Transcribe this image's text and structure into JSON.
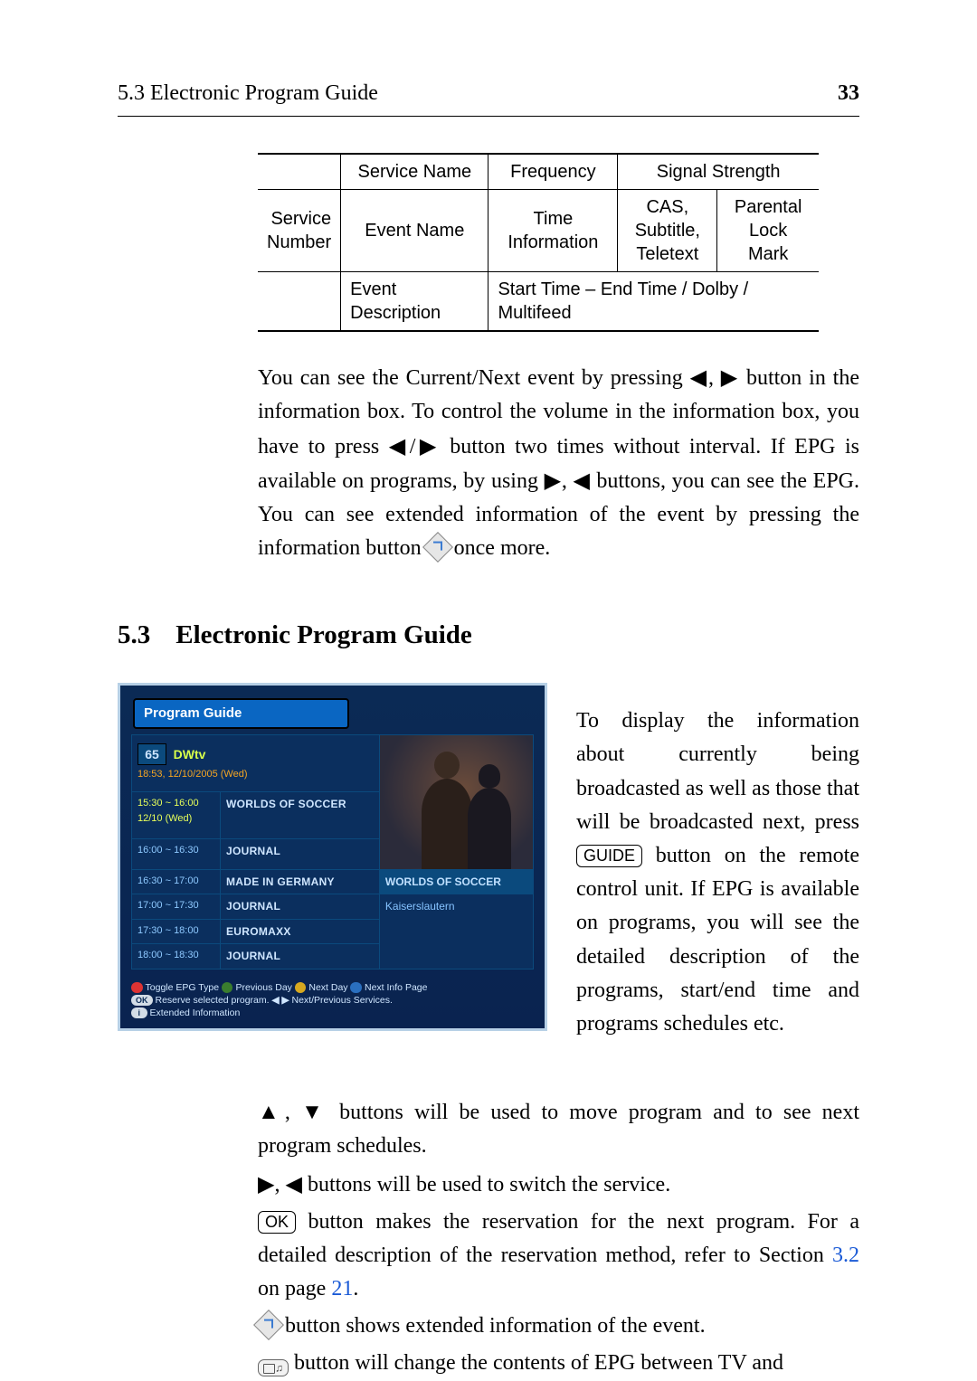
{
  "header": {
    "left": "5.3 Electronic Program Guide",
    "page": "33"
  },
  "infotable": {
    "r1c2": "Service Name",
    "r1c3": "Frequency",
    "r1c4": "Signal Strength",
    "r2c1a": "Service",
    "r2c1b": "Number",
    "r2c2": "Event Name",
    "r2c3a": "Time",
    "r2c3b": "Information",
    "r2c4a": "CAS,",
    "r2c4b": "Subtitle,",
    "r2c4c": "Teletext",
    "r2c5a": "Parental",
    "r2c5b": "Lock",
    "r2c5c": "Mark",
    "r3c2": "Event Description",
    "r3c3": "Start Time – End Time / Dolby / Multifeed"
  },
  "para1_a": "You can see the Current/Next event by pressing ",
  "para1_b": " button in the information box. To control the volume in the information box, you have to press ",
  "para1_c": " button two times without interval. If EPG is available on programs, by using ",
  "para1_d": " buttons, you can see the EPG. You can see extended information of the event by pressing the information button ",
  "para1_e": " once more.",
  "section": {
    "num": "5.3",
    "title": "Electronic Program Guide"
  },
  "epg": {
    "titlebar": "Program Guide",
    "channel_num": "65",
    "channel_name": "DWtv",
    "datetime": "18:53, 12/10/2005 (Wed)",
    "rows": [
      {
        "time": "15:30 ~ 16:00",
        "time2": "12/10 (Wed)",
        "prog": "WORLDS OF SOCCER",
        "active": true
      },
      {
        "time": "16:00 ~ 16:30",
        "prog": "JOURNAL"
      },
      {
        "time": "16:30 ~ 17:00",
        "prog": "MADE IN GERMANY"
      },
      {
        "time": "17:00 ~ 17:30",
        "prog": "JOURNAL"
      },
      {
        "time": "17:30 ~ 18:00",
        "prog": "EUROMAXX"
      },
      {
        "time": "18:00 ~ 18:30",
        "prog": "JOURNAL"
      }
    ],
    "preview_title": "WORLDS OF SOCCER",
    "preview_desc": "Kaiserslautern",
    "legend": {
      "l1a": "Toggle EPG Type",
      "l1b": "Previous Day",
      "l1c": "Next Day",
      "l1d": "Next Info Page",
      "l2a": "Reserve selected program.",
      "l2b": "Next/Previous Services.",
      "l3": "Extended Information"
    }
  },
  "epg_para_a": "To display the information about currently being broadcasted as well as those that will be broadcasted next, press ",
  "epg_para_b": " button on the remote control unit.  If EPG is available on programs, you will see the detailed description of the programs, start/end time and programs schedules etc.",
  "guide_key": "GUIDE",
  "list": {
    "p1": " buttons will be used to move program and to see next program schedules.",
    "p2": " buttons will be used to switch the service.",
    "ok": "OK",
    "p3a": " button makes the reservation for the next program.  For a detailed description of the reservation method, refer to Section ",
    "p3_link1": "3.2",
    "p3_mid": " on page ",
    "p3_link2": "21",
    "p3_end": ".",
    "p4": " button shows extended information of the event.",
    "p5": " button will change the contents of EPG between TV and"
  },
  "glyphs": {
    "left": "◀",
    "right": "▶",
    "up": "▲",
    "down": "▼",
    "sep": ", ",
    "slash": "/"
  }
}
